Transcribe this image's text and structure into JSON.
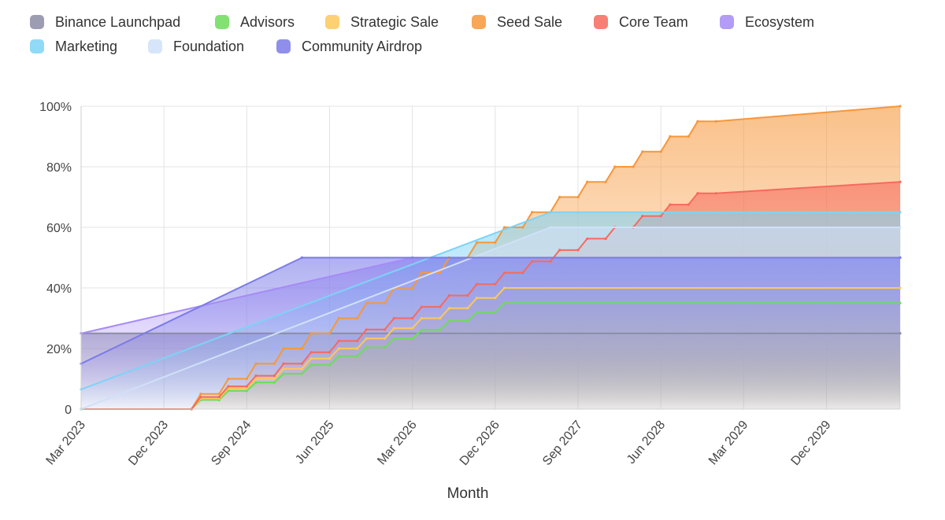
{
  "chart_data": {
    "type": "area",
    "stacked": false,
    "xlabel": "Month",
    "ylabel": "",
    "x_tick_labels": [
      "Mar 2023",
      "Dec 2023",
      "Sep 2024",
      "Jun 2025",
      "Mar 2026",
      "Dec 2026",
      "Sep 2027",
      "Jun 2028",
      "Mar 2029",
      "Dec 2029"
    ],
    "y_tick_labels": [
      "0",
      "20%",
      "40%",
      "60%",
      "80%",
      "100%"
    ],
    "ylim": [
      0,
      100
    ],
    "x_range": [
      "Mar 2023",
      "Aug 2030"
    ],
    "grid": true,
    "legend_position": "top",
    "series": [
      {
        "name": "Binance Launchpad",
        "color": "#8b8ca6",
        "points": [
          [
            "Mar 2023",
            25
          ],
          [
            "Aug 2030",
            25
          ]
        ]
      },
      {
        "name": "Advisors",
        "color": "#6ddc5a",
        "points": [
          [
            "Mar 2023",
            0
          ],
          [
            "Mar 2024",
            0
          ],
          [
            "Apr 2024",
            3
          ],
          [
            "Jun 2024",
            3
          ],
          [
            "Jul 2024",
            6
          ],
          [
            "Sep 2024",
            6
          ],
          [
            "Oct 2024",
            8.8
          ],
          [
            "Dec 2024",
            8.8
          ],
          [
            "Jan 2025",
            11.7
          ],
          [
            "Mar 2025",
            11.7
          ],
          [
            "Apr 2025",
            14.6
          ],
          [
            "Jun 2025",
            14.6
          ],
          [
            "Jul 2025",
            17.5
          ],
          [
            "Sep 2025",
            17.5
          ],
          [
            "Oct 2025",
            20.4
          ],
          [
            "Dec 2025",
            20.4
          ],
          [
            "Jan 2026",
            23.3
          ],
          [
            "Mar 2026",
            23.3
          ],
          [
            "Apr 2026",
            26.2
          ],
          [
            "Jun 2026",
            26.2
          ],
          [
            "Jul 2026",
            29.1
          ],
          [
            "Sep 2026",
            29.1
          ],
          [
            "Oct 2026",
            32
          ],
          [
            "Dec 2026",
            32
          ],
          [
            "Jan 2027",
            35
          ],
          [
            "Aug 2030",
            35
          ]
        ]
      },
      {
        "name": "Strategic Sale",
        "color": "#fcc85a",
        "points": [
          [
            "Mar 2023",
            0
          ],
          [
            "Mar 2024",
            0
          ],
          [
            "Apr 2024",
            3.5
          ],
          [
            "Jun 2024",
            3.5
          ],
          [
            "Jul 2024",
            6.8
          ],
          [
            "Sep 2024",
            6.8
          ],
          [
            "Oct 2024",
            10
          ],
          [
            "Dec 2024",
            10
          ],
          [
            "Jan 2025",
            13.3
          ],
          [
            "Mar 2025",
            13.3
          ],
          [
            "Apr 2025",
            16.7
          ],
          [
            "Jun 2025",
            16.7
          ],
          [
            "Jul 2025",
            20
          ],
          [
            "Sep 2025",
            20
          ],
          [
            "Oct 2025",
            23.3
          ],
          [
            "Dec 2025",
            23.3
          ],
          [
            "Jan 2026",
            26.7
          ],
          [
            "Mar 2026",
            26.7
          ],
          [
            "Apr 2026",
            30
          ],
          [
            "Jun 2026",
            30
          ],
          [
            "Jul 2026",
            33.3
          ],
          [
            "Sep 2026",
            33.3
          ],
          [
            "Oct 2026",
            36.7
          ],
          [
            "Dec 2026",
            36.7
          ],
          [
            "Jan 2027",
            40
          ],
          [
            "Aug 2030",
            40
          ]
        ]
      },
      {
        "name": "Seed Sale",
        "color": "#f7973a",
        "points": [
          [
            "Mar 2023",
            0
          ],
          [
            "Mar 2024",
            0
          ],
          [
            "Apr 2024",
            5
          ],
          [
            "Jun 2024",
            5
          ],
          [
            "Jul 2024",
            10
          ],
          [
            "Sep 2024",
            10
          ],
          [
            "Oct 2024",
            15
          ],
          [
            "Dec 2024",
            15
          ],
          [
            "Jan 2025",
            20
          ],
          [
            "Mar 2025",
            20
          ],
          [
            "Apr 2025",
            25
          ],
          [
            "Jun 2025",
            25
          ],
          [
            "Jul 2025",
            30
          ],
          [
            "Sep 2025",
            30
          ],
          [
            "Oct 2025",
            35
          ],
          [
            "Dec 2025",
            35
          ],
          [
            "Jan 2026",
            40
          ],
          [
            "Mar 2026",
            40
          ],
          [
            "Apr 2026",
            45
          ],
          [
            "Jun 2026",
            45
          ],
          [
            "Jul 2026",
            50
          ],
          [
            "Sep 2026",
            50
          ],
          [
            "Oct 2026",
            55
          ],
          [
            "Dec 2026",
            55
          ],
          [
            "Jan 2027",
            60
          ],
          [
            "Mar 2027",
            60
          ],
          [
            "Apr 2027",
            65
          ],
          [
            "Jun 2027",
            65
          ],
          [
            "Jul 2027",
            70
          ],
          [
            "Sep 2027",
            70
          ],
          [
            "Oct 2027",
            75
          ],
          [
            "Dec 2027",
            75
          ],
          [
            "Jan 2028",
            80
          ],
          [
            "Mar 2028",
            80
          ],
          [
            "Apr 2028",
            85
          ],
          [
            "Jun 2028",
            85
          ],
          [
            "Jul 2028",
            90
          ],
          [
            "Sep 2028",
            90
          ],
          [
            "Oct 2028",
            95
          ],
          [
            "Dec 2028",
            95
          ],
          [
            "Aug 2030",
            100
          ]
        ]
      },
      {
        "name": "Core Team",
        "color": "#f66a5e",
        "points": [
          [
            "Mar 2023",
            0
          ],
          [
            "Mar 2024",
            0
          ],
          [
            "Apr 2024",
            4
          ],
          [
            "Jun 2024",
            4
          ],
          [
            "Jul 2024",
            7.5
          ],
          [
            "Sep 2024",
            7.5
          ],
          [
            "Oct 2024",
            11
          ],
          [
            "Dec 2024",
            11
          ],
          [
            "Jan 2025",
            15
          ],
          [
            "Mar 2025",
            15
          ],
          [
            "Apr 2025",
            18.75
          ],
          [
            "Jun 2025",
            18.75
          ],
          [
            "Jul 2025",
            22.5
          ],
          [
            "Sep 2025",
            22.5
          ],
          [
            "Oct 2025",
            26.25
          ],
          [
            "Dec 2025",
            26.25
          ],
          [
            "Jan 2026",
            30
          ],
          [
            "Mar 2026",
            30
          ],
          [
            "Apr 2026",
            33.75
          ],
          [
            "Jun 2026",
            33.75
          ],
          [
            "Jul 2026",
            37.5
          ],
          [
            "Sep 2026",
            37.5
          ],
          [
            "Oct 2026",
            41.25
          ],
          [
            "Dec 2026",
            41.25
          ],
          [
            "Jan 2027",
            45
          ],
          [
            "Mar 2027",
            45
          ],
          [
            "Apr 2027",
            48.75
          ],
          [
            "Jun 2027",
            48.75
          ],
          [
            "Jul 2027",
            52.5
          ],
          [
            "Sep 2027",
            52.5
          ],
          [
            "Oct 2027",
            56.25
          ],
          [
            "Dec 2027",
            56.25
          ],
          [
            "Jan 2028",
            60
          ],
          [
            "Mar 2028",
            60
          ],
          [
            "Apr 2028",
            63.75
          ],
          [
            "Jun 2028",
            63.75
          ],
          [
            "Jul 2028",
            67.5
          ],
          [
            "Sep 2028",
            67.5
          ],
          [
            "Oct 2028",
            71.25
          ],
          [
            "Dec 2028",
            71.25
          ],
          [
            "Aug 2030",
            75
          ]
        ]
      },
      {
        "name": "Ecosystem",
        "color": "#a68bf5",
        "points": [
          [
            "Mar 2023",
            25
          ],
          [
            "Mar 2026",
            50
          ],
          [
            "Aug 2030",
            50
          ]
        ]
      },
      {
        "name": "Marketing",
        "color": "#7dd3f7",
        "points": [
          [
            "Mar 2023",
            6.5
          ],
          [
            "Jun 2027",
            65
          ],
          [
            "Aug 2030",
            65
          ]
        ]
      },
      {
        "name": "Foundation",
        "color": "#cfe1f8",
        "points": [
          [
            "Mar 2023",
            0
          ],
          [
            "Jun 2027",
            60
          ],
          [
            "Aug 2030",
            60
          ]
        ]
      },
      {
        "name": "Community Airdrop",
        "color": "#7b7be8",
        "points": [
          [
            "Mar 2023",
            15
          ],
          [
            "Mar 2025",
            50
          ],
          [
            "Aug 2030",
            50
          ]
        ]
      }
    ]
  }
}
